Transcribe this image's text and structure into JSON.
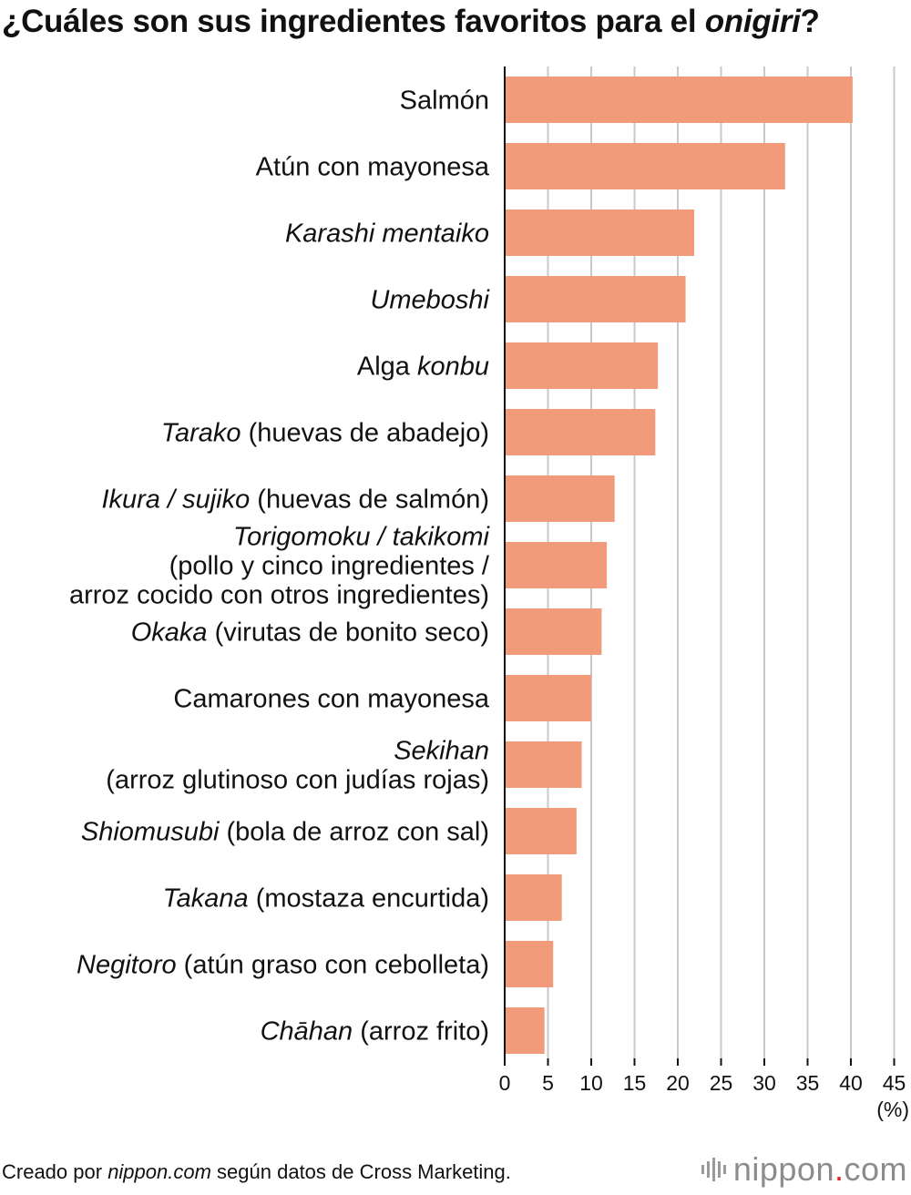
{
  "title": {
    "segments": [
      {
        "text": "¿Cuáles son sus ingredientes favoritos para el ",
        "italic": false
      },
      {
        "text": "onigiri",
        "italic": true
      },
      {
        "text": "?",
        "italic": false
      }
    ]
  },
  "colors": {
    "bar": "#f29b7a",
    "grid": "#c8c8c8",
    "axis": "#111111"
  },
  "chart_data": {
    "type": "bar",
    "orientation": "horizontal",
    "xlim": [
      0,
      45
    ],
    "ticks": [
      0,
      5,
      10,
      15,
      20,
      25,
      30,
      35,
      40,
      45
    ],
    "unit": "(%)",
    "grid": true,
    "categories": [
      {
        "lines": [
          [
            {
              "t": "Salmón",
              "i": false
            }
          ]
        ],
        "value": 40.2
      },
      {
        "lines": [
          [
            {
              "t": "Atún con mayonesa",
              "i": false
            }
          ]
        ],
        "value": 32.4
      },
      {
        "lines": [
          [
            {
              "t": "Karashi mentaiko",
              "i": true
            }
          ]
        ],
        "value": 21.9
      },
      {
        "lines": [
          [
            {
              "t": "Umeboshi",
              "i": true
            }
          ]
        ],
        "value": 20.9
      },
      {
        "lines": [
          [
            {
              "t": "Alga ",
              "i": false
            },
            {
              "t": "konbu",
              "i": true
            }
          ]
        ],
        "value": 17.7
      },
      {
        "lines": [
          [
            {
              "t": "Tarako",
              "i": true
            },
            {
              "t": " (huevas de abadejo)",
              "i": false
            }
          ]
        ],
        "value": 17.4
      },
      {
        "lines": [
          [
            {
              "t": "Ikura / sujiko",
              "i": true
            },
            {
              "t": " (huevas de salmón)",
              "i": false
            }
          ]
        ],
        "value": 12.7
      },
      {
        "lines": [
          [
            {
              "t": "Torigomoku / takikomi",
              "i": true
            }
          ],
          [
            {
              "t": "(pollo y cinco ingredientes /",
              "i": false
            }
          ],
          [
            {
              "t": "arroz cocido con otros ingredientes)",
              "i": false
            }
          ]
        ],
        "value": 11.8
      },
      {
        "lines": [
          [
            {
              "t": "Okaka",
              "i": true
            },
            {
              "t": " (virutas de bonito seco)",
              "i": false
            }
          ]
        ],
        "value": 11.2
      },
      {
        "lines": [
          [
            {
              "t": "Camarones con mayonesa",
              "i": false
            }
          ]
        ],
        "value": 10.0
      },
      {
        "lines": [
          [
            {
              "t": "Sekihan",
              "i": true
            }
          ],
          [
            {
              "t": "(arroz glutinoso con judías rojas)",
              "i": false
            }
          ]
        ],
        "value": 8.9
      },
      {
        "lines": [
          [
            {
              "t": "Shiomusubi",
              "i": true
            },
            {
              "t": " (bola de arroz con sal)",
              "i": false
            }
          ]
        ],
        "value": 8.3
      },
      {
        "lines": [
          [
            {
              "t": "Takana",
              "i": true
            },
            {
              "t": " (mostaza encurtida)",
              "i": false
            }
          ]
        ],
        "value": 6.6
      },
      {
        "lines": [
          [
            {
              "t": "Negitoro",
              "i": true
            },
            {
              "t": " (atún graso con cebolleta)",
              "i": false
            }
          ]
        ],
        "value": 5.6
      },
      {
        "lines": [
          [
            {
              "t": "Chāhan",
              "i": true
            },
            {
              "t": " (arroz frito)",
              "i": false
            }
          ]
        ],
        "value": 4.6
      }
    ]
  },
  "source": {
    "segments": [
      {
        "text": "Creado por ",
        "italic": false
      },
      {
        "text": "nippon.com",
        "italic": true
      },
      {
        "text": " según datos de Cross Marketing.",
        "italic": false
      }
    ]
  },
  "logo": {
    "brand": "nippon",
    "dot": ".",
    "suffix": "com"
  }
}
